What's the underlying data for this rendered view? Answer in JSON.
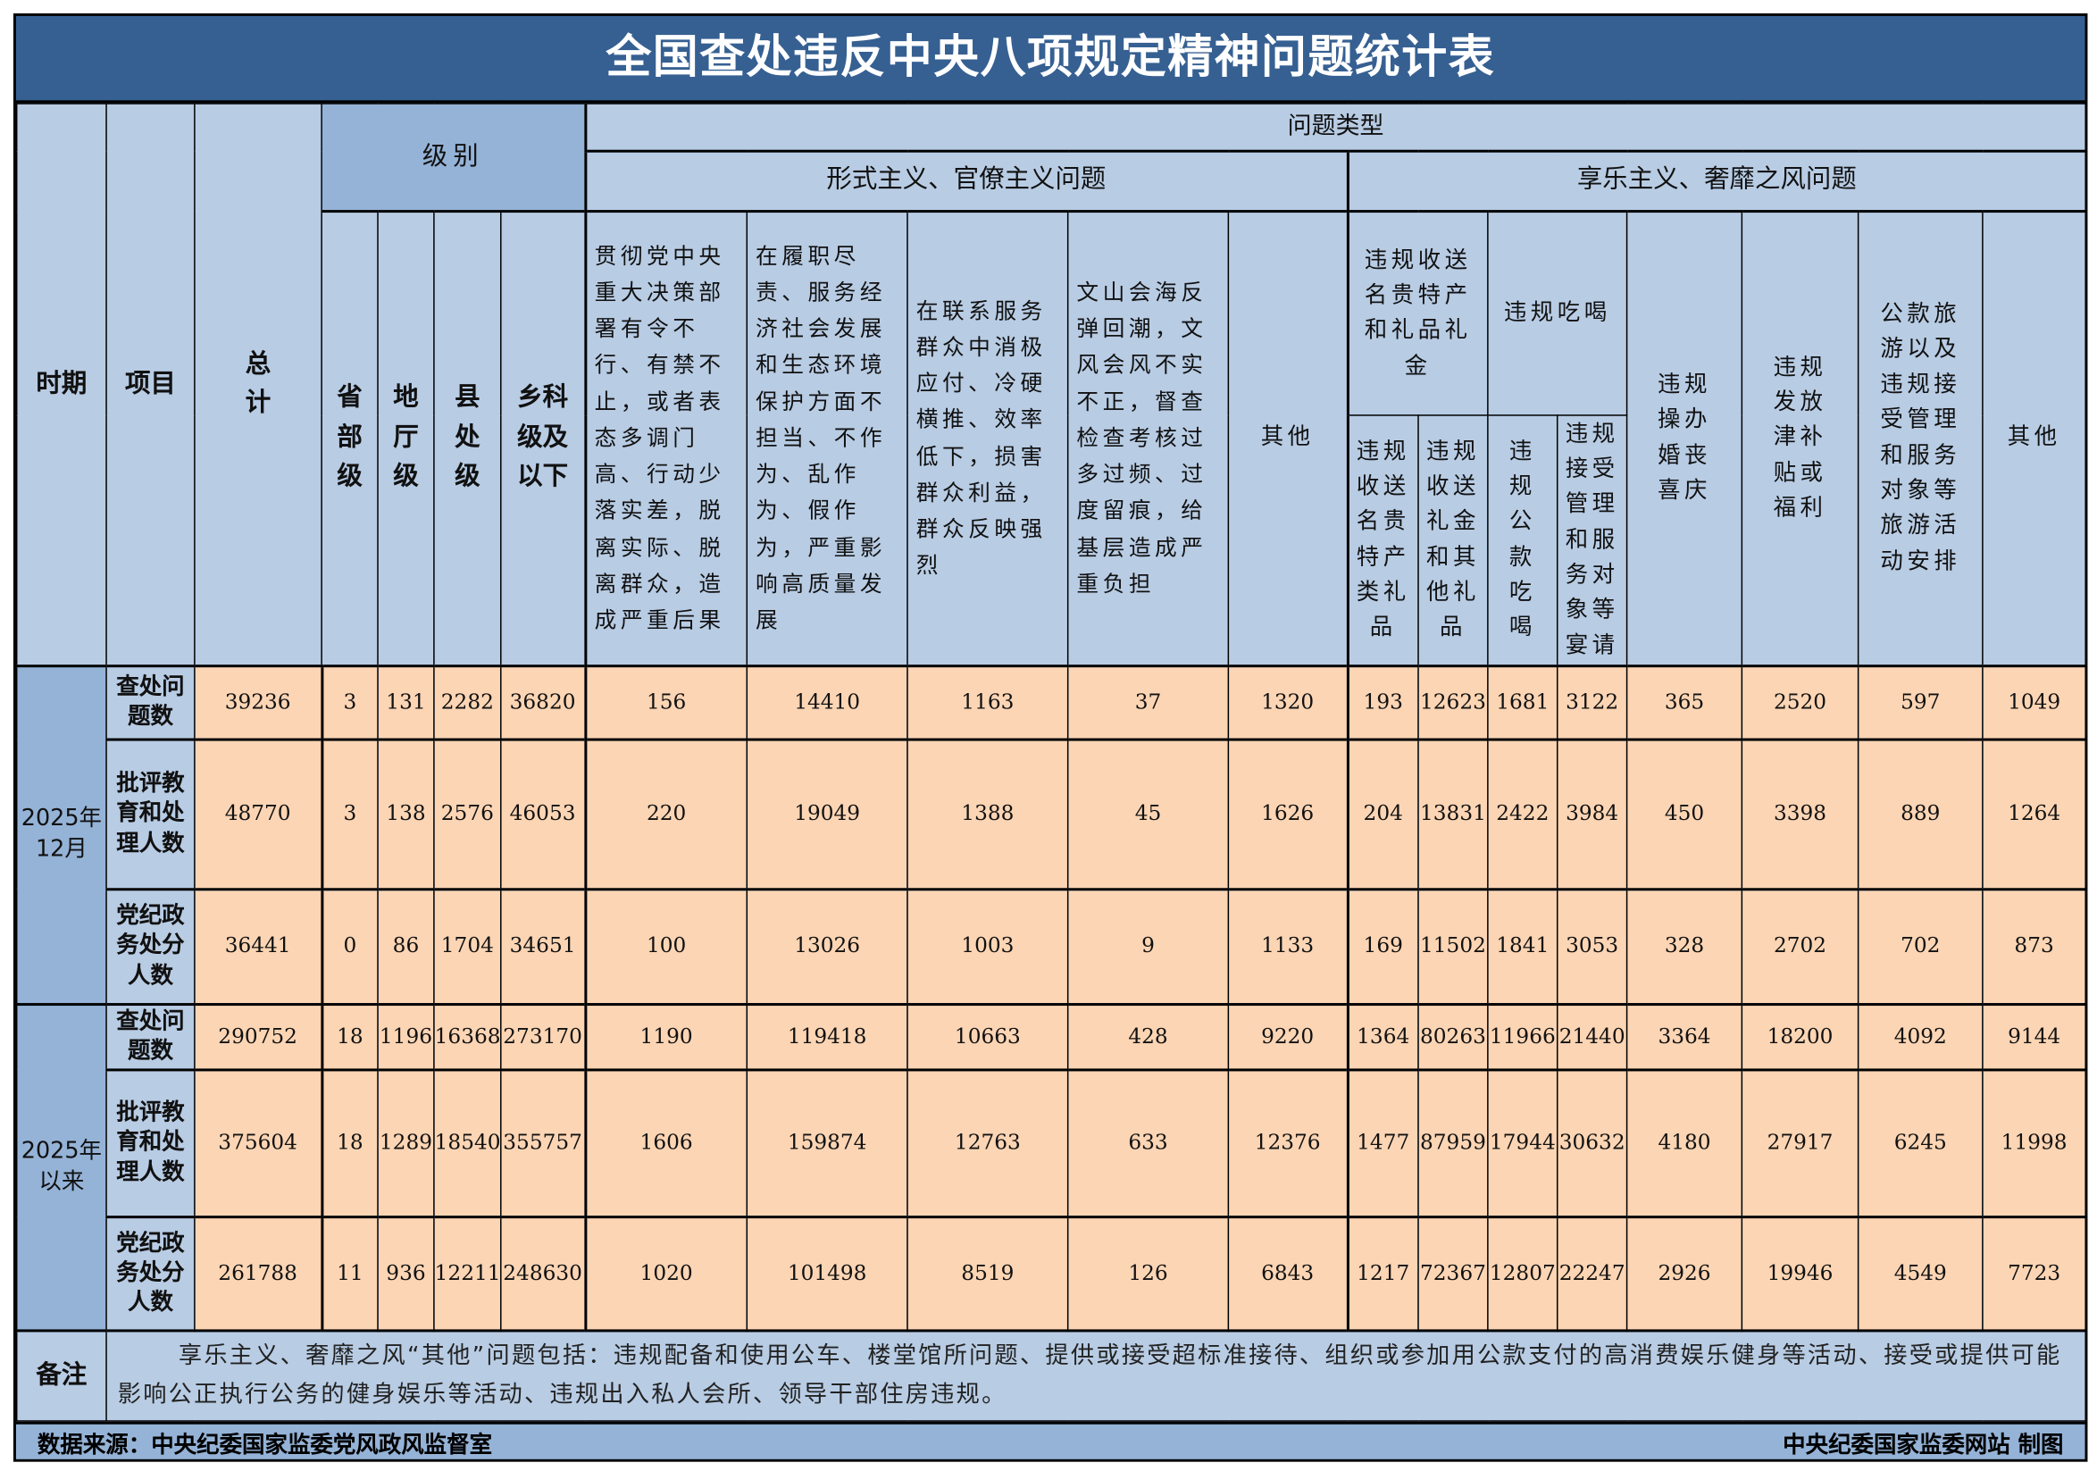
{
  "title": "全国查处违反中央八项规定精神问题统计表",
  "header": {
    "period": "时期",
    "item": "项目",
    "total": "总计",
    "level": "级别",
    "levels": [
      "省部级",
      "地厅级",
      "县处级",
      "乡科级及以下"
    ],
    "problem_type": "问题类型",
    "formalism": {
      "label": "形式主义、官僚主义问题",
      "columns": [
        "贯彻党中央重大决策部署有令不行、有禁不止，或者表态多调门高、行动少落实差，脱离实际、脱离群众，造成严重后果",
        "在履职尽责、服务经济社会发展和生态环境保护方面不担当、不作为、乱作为、假作为，严重影响高质量发展",
        "在联系服务群众中消极应付、冷硬横推、效率低下，损害群众利益，群众反映强烈",
        "文山会海反弹回潮，文风会风不实不正，督查检查考核过多过频、过度留痕，给基层造成严重负担",
        "其他"
      ]
    },
    "hedonism": {
      "label": "享乐主义、奢靡之风问题",
      "gifts": {
        "label": "违规收送名贵特产和礼品礼金",
        "sub": [
          "违规收送名贵特产类礼品",
          "违规收送礼金和其他礼品"
        ]
      },
      "dining": {
        "label": "违规吃喝",
        "sub": [
          "违规公款吃喝",
          "违规接受管理和服务对象等宴请"
        ]
      },
      "columns": [
        "违规操办婚丧喜庆",
        "违规发放津补贴或福利",
        "公款旅游以及违规接受管理和服务对象等旅游活动安排",
        "其他"
      ]
    }
  },
  "groups": [
    {
      "period": "2025年12月",
      "rows": [
        {
          "item": "查处问题数",
          "values": [
            39236,
            3,
            131,
            2282,
            36820,
            156,
            14410,
            1163,
            37,
            1320,
            193,
            12623,
            1681,
            3122,
            365,
            2520,
            597,
            1049
          ]
        },
        {
          "item": "批评教育和处理人数",
          "values": [
            48770,
            3,
            138,
            2576,
            46053,
            220,
            19049,
            1388,
            45,
            1626,
            204,
            13831,
            2422,
            3984,
            450,
            3398,
            889,
            1264
          ]
        },
        {
          "item": "党纪政务处分人数",
          "values": [
            36441,
            0,
            86,
            1704,
            34651,
            100,
            13026,
            1003,
            9,
            1133,
            169,
            11502,
            1841,
            3053,
            328,
            2702,
            702,
            873
          ]
        }
      ]
    },
    {
      "period": "2025年以来",
      "rows": [
        {
          "item": "查处问题数",
          "values": [
            290752,
            18,
            1196,
            16368,
            273170,
            1190,
            119418,
            10663,
            428,
            9220,
            1364,
            80263,
            11966,
            21440,
            3364,
            18200,
            4092,
            9144
          ]
        },
        {
          "item": "批评教育和处理人数",
          "values": [
            375604,
            18,
            1289,
            18540,
            355757,
            1606,
            159874,
            12763,
            633,
            12376,
            1477,
            87959,
            17944,
            30632,
            4180,
            27917,
            6245,
            11998
          ]
        },
        {
          "item": "党纪政务处分人数",
          "values": [
            261788,
            11,
            936,
            12211,
            248630,
            1020,
            101498,
            8519,
            126,
            6843,
            1217,
            72367,
            12807,
            22247,
            2926,
            19946,
            4549,
            7723
          ]
        }
      ]
    }
  ],
  "note": {
    "label": "备注",
    "text": "享乐主义、奢靡之风“其他”问题包括：违规配备和使用公车、楼堂馆所问题、提供或接受超标准接待、组织或参加用公款支付的高消费娱乐健身等活动、接受或提供可能影响公正执行公务的健身娱乐等活动、违规出入私人会所、领导干部住房违规。"
  },
  "footer": {
    "source": "数据来源：中央纪委国家监委党风政风监督室",
    "credit": "中央纪委国家监委网站 制图"
  },
  "colors": {
    "title_bg": "#366092",
    "header_bg": "#b8cce4",
    "header_dark": "#95b3d7",
    "cell_bg": "#fcd5b4"
  }
}
